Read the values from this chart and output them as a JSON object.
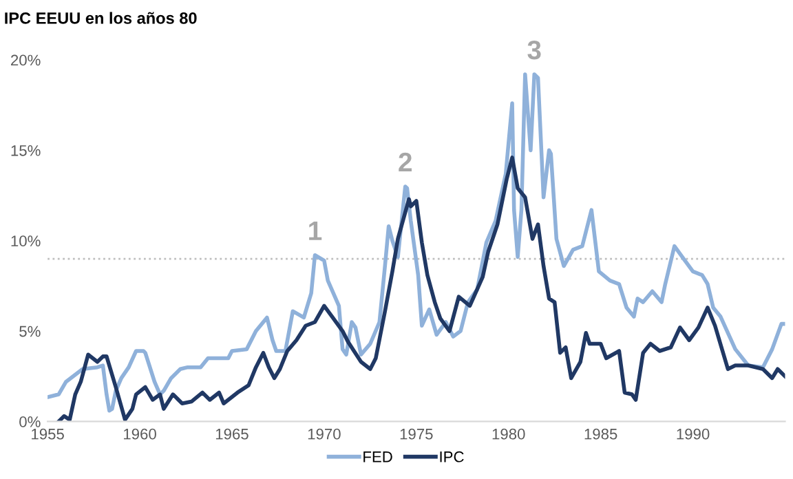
{
  "chart_data": {
    "type": "line",
    "title": "IPC EEUU en los años 80",
    "xlim": [
      1955,
      1995
    ],
    "xticks": [
      1955,
      1960,
      1965,
      1970,
      1975,
      1980,
      1985,
      1990
    ],
    "ylim": [
      0,
      20
    ],
    "yticks": [
      {
        "value": 0,
        "label": "0%"
      },
      {
        "value": 5,
        "label": "5%"
      },
      {
        "value": 10,
        "label": "10%"
      },
      {
        "value": 15,
        "label": "15%"
      },
      {
        "value": 20,
        "label": "20%"
      }
    ],
    "grid": false,
    "legend": "bottom",
    "line_style": "solid",
    "marker": "none",
    "ref_lines": [
      {
        "axis": "y",
        "value": 9,
        "color": "#bfbfbf",
        "line_style": "dotted"
      }
    ],
    "annotations": [
      {
        "text": "1",
        "x": 1969.5,
        "y": 9.2
      },
      {
        "text": "2",
        "x": 1974.4,
        "y": 13.0
      },
      {
        "text": "3",
        "x": 1981.4,
        "y": 19.2
      }
    ],
    "series": [
      {
        "name": "FED",
        "color": "#8fb1da",
        "x": [
          1955.0,
          1955.6,
          1956.0,
          1956.9,
          1957.7,
          1958.0,
          1958.2,
          1958.35,
          1958.5,
          1958.7,
          1959.0,
          1959.4,
          1959.8,
          1960.2,
          1960.3,
          1960.8,
          1961.1,
          1961.3,
          1961.7,
          1962.2,
          1962.6,
          1963.3,
          1963.7,
          1964.8,
          1965.0,
          1965.8,
          1966.3,
          1966.9,
          1967.2,
          1967.4,
          1967.9,
          1968.3,
          1968.9,
          1969.3,
          1969.5,
          1970.0,
          1970.2,
          1970.8,
          1971.0,
          1971.2,
          1971.5,
          1971.7,
          1972.0,
          1972.5,
          1973.0,
          1973.3,
          1973.5,
          1973.7,
          1974.0,
          1974.4,
          1974.5,
          1974.7,
          1975.1,
          1975.3,
          1975.7,
          1976.1,
          1976.6,
          1977.0,
          1977.4,
          1977.8,
          1978.3,
          1978.8,
          1979.3,
          1979.85,
          1980.2,
          1980.3,
          1980.5,
          1980.7,
          1980.9,
          1981.2,
          1981.4,
          1981.6,
          1981.9,
          1982.2,
          1982.3,
          1982.6,
          1983.0,
          1983.5,
          1984.0,
          1984.5,
          1984.9,
          1985.5,
          1986.0,
          1986.4,
          1986.8,
          1987.0,
          1987.3,
          1987.8,
          1988.3,
          1988.5,
          1989.0,
          1989.5,
          1990.0,
          1990.5,
          1990.8,
          1991.1,
          1991.5,
          1992.3,
          1993.0,
          1993.8,
          1994.3,
          1994.8,
          1995.0
        ],
        "values": [
          1.35,
          1.5,
          2.2,
          2.9,
          3.0,
          3.1,
          1.5,
          0.6,
          0.7,
          1.7,
          2.4,
          3.0,
          3.9,
          3.9,
          3.8,
          2.2,
          1.5,
          1.7,
          2.4,
          2.9,
          3.0,
          3.0,
          3.5,
          3.5,
          3.9,
          4.0,
          5.0,
          5.75,
          4.5,
          3.9,
          3.9,
          6.1,
          5.75,
          7.1,
          9.2,
          8.9,
          7.8,
          6.4,
          4.0,
          3.7,
          5.5,
          5.2,
          3.7,
          4.3,
          5.5,
          8.6,
          10.8,
          10.0,
          9.1,
          13.0,
          12.9,
          11.1,
          8.1,
          5.3,
          6.2,
          4.8,
          5.5,
          4.7,
          5.0,
          6.6,
          7.3,
          9.9,
          11.1,
          13.7,
          17.6,
          11.7,
          9.1,
          11.7,
          19.2,
          15.0,
          19.2,
          19.0,
          12.4,
          15.0,
          14.8,
          10.1,
          8.6,
          9.5,
          9.7,
          11.7,
          8.3,
          7.8,
          7.6,
          6.3,
          5.8,
          6.8,
          6.6,
          7.2,
          6.6,
          7.6,
          9.7,
          9.0,
          8.3,
          8.1,
          7.6,
          6.3,
          5.8,
          4.0,
          3.1,
          3.0,
          4.0,
          5.4,
          5.4
        ]
      },
      {
        "name": "IPC",
        "color": "#203864",
        "x": [
          1955.6,
          1955.9,
          1956.2,
          1956.5,
          1956.8,
          1957.2,
          1957.7,
          1958.0,
          1958.2,
          1958.7,
          1959.2,
          1959.6,
          1959.8,
          1960.3,
          1960.7,
          1961.1,
          1961.3,
          1961.8,
          1962.3,
          1962.8,
          1963.4,
          1963.8,
          1964.3,
          1964.55,
          1965.3,
          1965.9,
          1966.3,
          1966.7,
          1967.0,
          1967.3,
          1967.6,
          1968.0,
          1968.5,
          1969.0,
          1969.5,
          1970.0,
          1970.5,
          1971.0,
          1971.3,
          1972.0,
          1972.5,
          1972.8,
          1973.3,
          1973.7,
          1974.0,
          1974.6,
          1974.7,
          1975.0,
          1975.3,
          1975.6,
          1976.0,
          1976.3,
          1976.8,
          1977.3,
          1977.9,
          1978.6,
          1978.9,
          1979.4,
          1979.9,
          1980.2,
          1980.5,
          1980.9,
          1981.3,
          1981.6,
          1981.9,
          1982.2,
          1982.5,
          1982.8,
          1983.1,
          1983.4,
          1983.9,
          1984.2,
          1984.4,
          1985.0,
          1985.3,
          1986.0,
          1986.3,
          1986.7,
          1986.9,
          1987.3,
          1987.7,
          1988.2,
          1988.8,
          1989.3,
          1989.8,
          1990.3,
          1990.8,
          1991.2,
          1991.9,
          1992.3,
          1993.0,
          1993.8,
          1994.3,
          1994.6,
          1995.0
        ],
        "values": [
          0,
          0.3,
          0.1,
          1.5,
          2.2,
          3.7,
          3.3,
          3.6,
          3.6,
          1.9,
          0.1,
          0.7,
          1.5,
          1.9,
          1.2,
          1.5,
          0.7,
          1.5,
          1.0,
          1.1,
          1.6,
          1.2,
          1.6,
          1.0,
          1.6,
          2.0,
          3.0,
          3.8,
          3.0,
          2.4,
          2.9,
          3.9,
          4.5,
          5.3,
          5.5,
          6.4,
          5.7,
          5.0,
          4.4,
          3.3,
          2.9,
          3.5,
          6.1,
          8.3,
          10.1,
          12.3,
          11.9,
          12.2,
          9.9,
          8.1,
          6.6,
          5.7,
          5.0,
          6.9,
          6.4,
          8.0,
          9.4,
          10.9,
          13.4,
          14.6,
          12.9,
          12.4,
          10.1,
          10.9,
          8.6,
          6.8,
          6.6,
          3.8,
          4.1,
          2.4,
          3.3,
          4.9,
          4.3,
          4.3,
          3.5,
          3.9,
          1.6,
          1.5,
          1.2,
          3.8,
          4.3,
          3.9,
          4.1,
          5.2,
          4.5,
          5.2,
          6.3,
          5.3,
          2.9,
          3.1,
          3.1,
          2.9,
          2.4,
          2.9,
          2.5
        ]
      }
    ]
  }
}
